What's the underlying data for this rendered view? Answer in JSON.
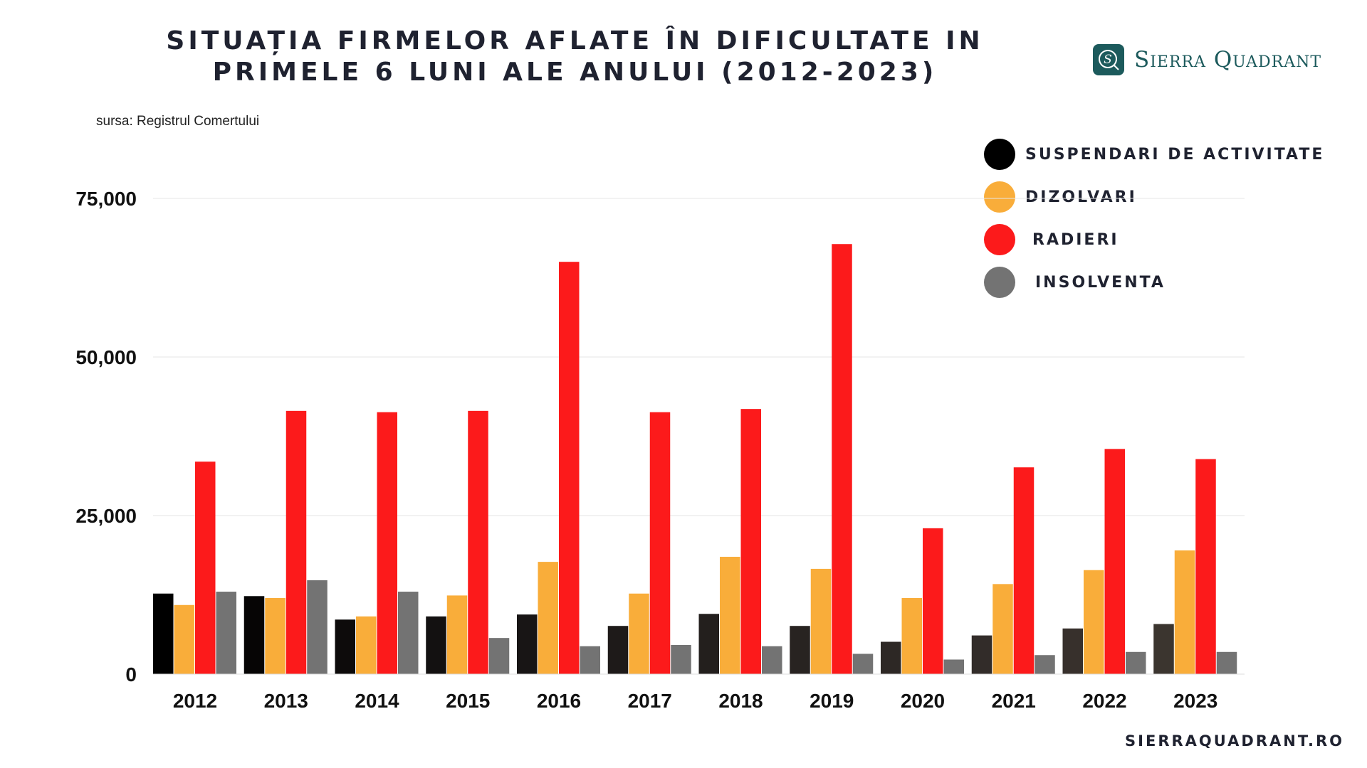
{
  "chart_data": {
    "type": "bar",
    "title": "SITUAȚIA FIRMELOR AFLATE ÎN DIFICULTATE IN PRIMELE 6 LUNI ALE ANULUI (2012-2023)",
    "title_lines": [
      "SITUAȚIA FIRMELOR AFLATE ÎN DIFICULTATE IN",
      "PRIMELE 6 LUNI ALE ANULUI (2012-2023)"
    ],
    "subtitle": "sursa: Registrul Comertului",
    "categories": [
      "2012",
      "2013",
      "2014",
      "2015",
      "2016",
      "2017",
      "2018",
      "2019",
      "2020",
      "2021",
      "2022",
      "2023"
    ],
    "series": [
      {
        "name": "SUSPENDARI DE ACTIVITATE",
        "color": "#000000",
        "values": [
          12700,
          12300,
          8600,
          9100,
          9400,
          7600,
          9500,
          7600,
          5100,
          6100,
          7200,
          7900
        ]
      },
      {
        "name": "DIZOLVARI",
        "color": "#f9ad3a",
        "values": [
          10900,
          12000,
          9100,
          12400,
          17700,
          12700,
          18500,
          16600,
          12000,
          14200,
          16400,
          19500
        ]
      },
      {
        "name": "RADIERI",
        "color": "#fc1a1b",
        "values": [
          33500,
          41500,
          41300,
          41500,
          65000,
          41300,
          41800,
          67800,
          23000,
          32600,
          35500,
          33900
        ]
      },
      {
        "name": "INSOLVENTA",
        "color": "#737373",
        "values": [
          13000,
          14800,
          13000,
          5700,
          4400,
          4600,
          4400,
          3200,
          2300,
          3000,
          3500,
          3500
        ]
      }
    ],
    "yticks": [
      "0",
      "25,000",
      "50,000",
      "75,000"
    ],
    "ytick_values": [
      0,
      25000,
      50000,
      75000
    ],
    "ylim": [
      0,
      75000
    ],
    "grid": true,
    "legend_placement": "top-right"
  },
  "brand": {
    "logo_text": "Sierra Quadrant",
    "logo_color": "#1c5a5c",
    "website": "SIERRAQUADRANT.RO"
  }
}
